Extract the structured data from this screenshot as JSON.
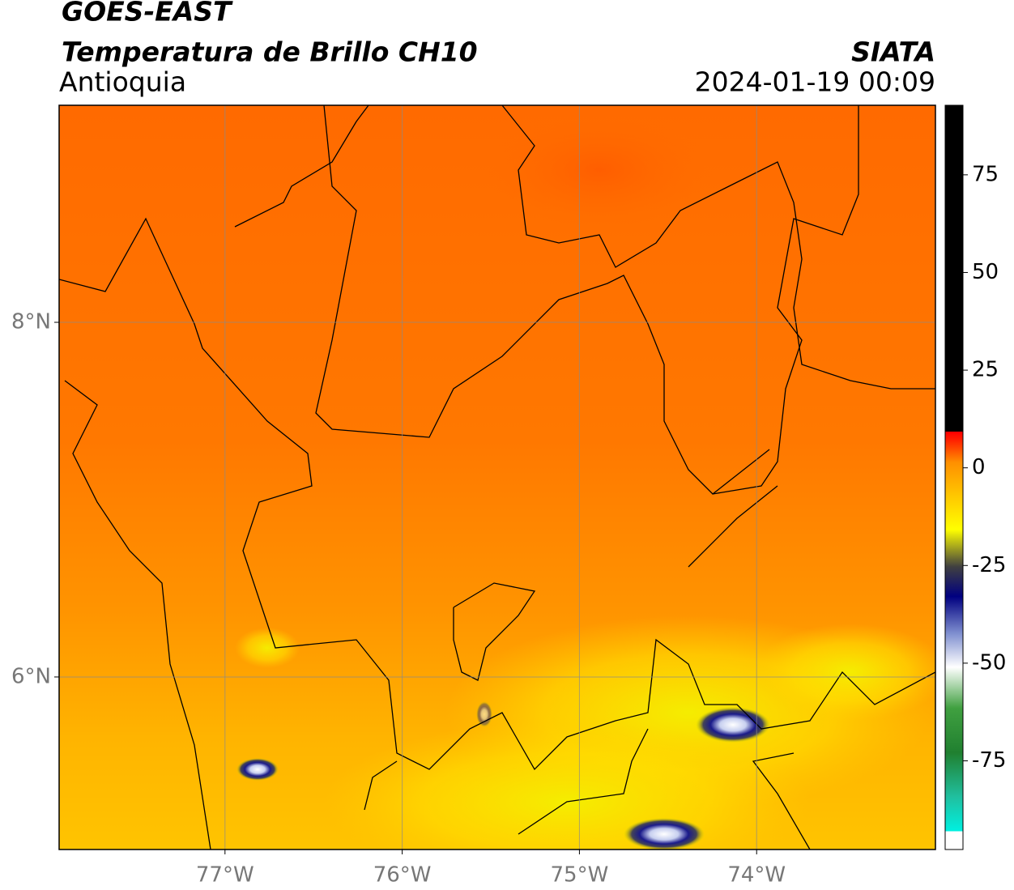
{
  "header": {
    "title": "GOES-EAST",
    "subtitle": "Temperatura de Brillo CH10",
    "region": "Antioquia",
    "source": "SIATA",
    "datetime": "2024-01-19 00:09"
  },
  "map": {
    "xlim": [
      -77.936,
      -72.991
    ],
    "ylim": [
      5.027,
      9.224
    ],
    "xticks": [
      {
        "value": -77,
        "label": "77°W"
      },
      {
        "value": -76,
        "label": "76°W"
      },
      {
        "value": -75,
        "label": "75°W"
      },
      {
        "value": -74,
        "label": "74°W"
      }
    ],
    "yticks": [
      {
        "value": 6,
        "label": "6°N"
      },
      {
        "value": 8,
        "label": "8°N"
      }
    ]
  },
  "colorbar": {
    "lim": [
      -97.7,
      92.8
    ],
    "ticks": [
      75,
      50,
      25,
      0,
      -25,
      -50,
      -75
    ]
  }
}
